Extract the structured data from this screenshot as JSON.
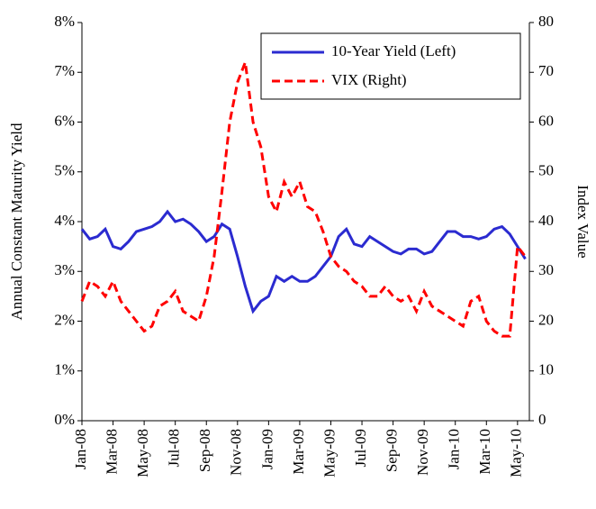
{
  "chart_data": {
    "type": "line",
    "y_label": "Annual Constant Maturity Yield",
    "y2_label": "Index Value",
    "categories": [
      "Jan-08",
      null,
      null,
      null,
      "Mar-08",
      null,
      null,
      null,
      "May-08",
      null,
      null,
      null,
      "Jul-08",
      null,
      null,
      null,
      "Sep-08",
      null,
      null,
      null,
      "Nov-08",
      null,
      null,
      null,
      "Jan-09",
      null,
      null,
      null,
      "Mar-09",
      null,
      null,
      null,
      "May-09",
      null,
      null,
      null,
      "Jul-09",
      null,
      null,
      null,
      "Sep-09",
      null,
      null,
      null,
      "Nov-09",
      null,
      null,
      null,
      "Jan-10",
      null,
      null,
      null,
      "Mar-10",
      null,
      null,
      null,
      "May-10",
      null
    ],
    "series": [
      {
        "name": "10-Year Yield (Left)",
        "color": "#2b2bd0",
        "linestyle": "solid",
        "axis": "y",
        "values": [
          3.85,
          3.65,
          3.7,
          3.85,
          3.5,
          3.45,
          3.6,
          3.8,
          3.85,
          3.9,
          4.0,
          4.2,
          4.0,
          4.05,
          3.95,
          3.8,
          3.6,
          3.7,
          3.95,
          3.85,
          3.3,
          2.7,
          2.2,
          2.4,
          2.5,
          2.9,
          2.8,
          2.9,
          2.8,
          2.8,
          2.9,
          3.1,
          3.3,
          3.7,
          3.85,
          3.55,
          3.5,
          3.7,
          3.6,
          3.5,
          3.4,
          3.35,
          3.45,
          3.45,
          3.35,
          3.4,
          3.6,
          3.8,
          3.8,
          3.7,
          3.7,
          3.65,
          3.7,
          3.85,
          3.9,
          3.75,
          3.5,
          3.25
        ]
      },
      {
        "name": "VIX (Right)",
        "color": "#ff0000",
        "linestyle": "dashed",
        "axis": "y2",
        "values": [
          24,
          28,
          27,
          25,
          28,
          24,
          22,
          20,
          18,
          19,
          23,
          24,
          26,
          22,
          21,
          20,
          25,
          33,
          46,
          60,
          68,
          72,
          60,
          55,
          45,
          42,
          48,
          45,
          48,
          43,
          42,
          38,
          33,
          31,
          30,
          28,
          27,
          25,
          25,
          27,
          25,
          24,
          25,
          22,
          26,
          23,
          22,
          21,
          20,
          19,
          24,
          25,
          20,
          18,
          17,
          17,
          35,
          33
        ]
      }
    ],
    "ylim": [
      0,
      8
    ],
    "yticks": [
      {
        "value": 0,
        "label": "0%"
      },
      {
        "value": 1,
        "label": "1%"
      },
      {
        "value": 2,
        "label": "2%"
      },
      {
        "value": 3,
        "label": "3%"
      },
      {
        "value": 4,
        "label": "4%"
      },
      {
        "value": 5,
        "label": "5%"
      },
      {
        "value": 6,
        "label": "6%"
      },
      {
        "value": 7,
        "label": "7%"
      },
      {
        "value": 8,
        "label": "8%"
      }
    ],
    "y2lim": [
      0,
      80
    ],
    "y2ticks": [
      0,
      10,
      20,
      30,
      40,
      50,
      60,
      70,
      80
    ],
    "grid": false,
    "legend": "top-right"
  }
}
